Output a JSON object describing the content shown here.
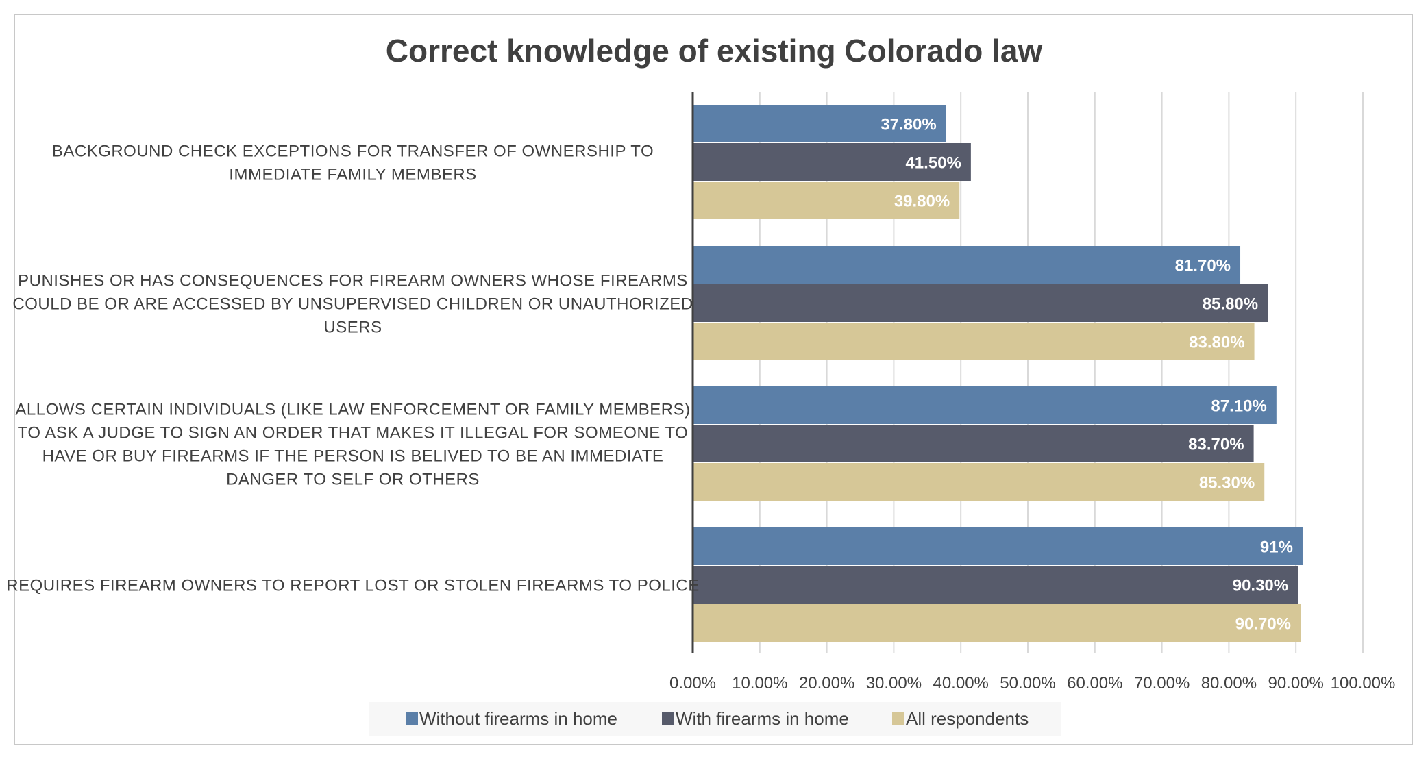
{
  "chart_data": {
    "type": "bar",
    "orientation": "horizontal",
    "title": "Correct knowledge of existing Colorado law",
    "categories": [
      [
        "BACKGROUND CHECK EXCEPTIONS FOR TRANSFER OF OWNERSHIP TO",
        "IMMEDIATE FAMILY MEMBERS"
      ],
      [
        "PUNISHES OR HAS CONSEQUENCES FOR FIREARM OWNERS WHOSE FIREARMS",
        "COULD BE OR ARE ACCESSED BY UNSUPERVISED CHILDREN OR UNAUTHORIZED",
        "USERS"
      ],
      [
        "ALLOWS CERTAIN INDIVIDUALS (LIKE LAW ENFORCEMENT OR FAMILY MEMBERS)",
        "TO ASK A JUDGE TO SIGN AN ORDER THAT MAKES IT ILLEGAL FOR SOMEONE TO",
        "HAVE OR BUY FIREARMS IF THE PERSON IS BELIVED TO BE AN IMMEDIATE",
        "DANGER TO SELF OR OTHERS"
      ],
      [
        "REQUIRES FIREARM OWNERS TO REPORT LOST OR STOLEN FIREARMS TO POLICE"
      ]
    ],
    "series": [
      {
        "name": "Without firearms in home",
        "color": "#5b7fa8",
        "values": [
          37.8,
          81.7,
          87.1,
          91
        ],
        "labels": [
          "37.80%",
          "81.70%",
          "87.10%",
          "91%"
        ]
      },
      {
        "name": "With firearms in home",
        "color": "#575b6b",
        "values": [
          41.5,
          85.8,
          83.7,
          90.3
        ],
        "labels": [
          "41.50%",
          "85.80%",
          "83.70%",
          "90.30%"
        ]
      },
      {
        "name": "All respondents",
        "color": "#d6c797",
        "values": [
          39.8,
          83.8,
          85.3,
          90.7
        ],
        "labels": [
          "39.80%",
          "83.80%",
          "85.30%",
          "90.70%"
        ]
      }
    ],
    "xlim": [
      0,
      100
    ],
    "x_ticks": [
      "0.00%",
      "10.00%",
      "20.00%",
      "30.00%",
      "40.00%",
      "50.00%",
      "60.00%",
      "70.00%",
      "80.00%",
      "90.00%",
      "100.00%"
    ],
    "grid": true,
    "legend": "bottom"
  }
}
